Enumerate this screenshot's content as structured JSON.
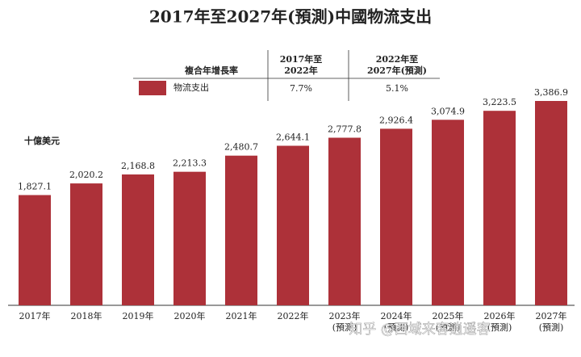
{
  "chart_data": {
    "type": "bar",
    "title": "2017年至2027年(預測)中國物流支出",
    "unit_label": "十億美元",
    "categories": [
      [
        "2017年"
      ],
      [
        "2018年"
      ],
      [
        "2019年"
      ],
      [
        "2020年"
      ],
      [
        "2021年"
      ],
      [
        "2022年"
      ],
      [
        "2023年",
        "(預測)"
      ],
      [
        "2024年",
        "(預測)"
      ],
      [
        "2025年",
        "(預測)"
      ],
      [
        "2026年",
        "(預測)"
      ],
      [
        "2027年",
        "(預測)"
      ]
    ],
    "series": [
      {
        "name": "物流支出",
        "color": "#ad3139",
        "values": [
          1827.1,
          2020.2,
          2168.8,
          2213.3,
          2480.7,
          2644.1,
          2777.8,
          2926.4,
          3074.9,
          3223.5,
          3386.9
        ],
        "value_labels": [
          "1,827.1",
          "2,020.2",
          "2,168.8",
          "2,213.3",
          "2,480.7",
          "2,644.1",
          "2,777.8",
          "2,926.4",
          "3,074.9",
          "3,223.5",
          "3,386.9"
        ]
      }
    ],
    "legend_table": {
      "header": "複合年增長率",
      "periods": [
        [
          "2017年至",
          "2022年"
        ],
        [
          "2022年至",
          "2027年(預測)"
        ]
      ],
      "rates": [
        "7.7%",
        "5.1%"
      ]
    },
    "watermark": "知乎 @西域来客逍遥客"
  }
}
